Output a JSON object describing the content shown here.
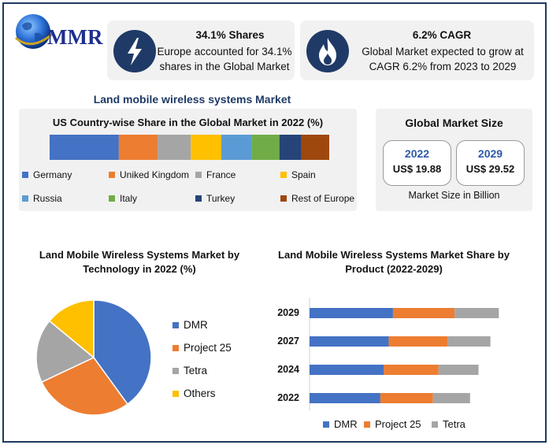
{
  "logo": {
    "text": "MMR"
  },
  "stats": [
    {
      "icon": "lightning-icon",
      "title": "34.1% Shares",
      "description": "Europe accounted for 34.1% shares in the Global Market"
    },
    {
      "icon": "flame-icon",
      "title": "6.2% CAGR",
      "description": "Global Market expected to grow at CAGR 6.2% from 2023 to 2029"
    }
  ],
  "section_title": "Land mobile wireless systems Market",
  "global_size": {
    "title": "Global Market Size",
    "years": [
      {
        "year": "2022",
        "value": "US$ 19.88"
      },
      {
        "year": "2029",
        "value": "US$ 29.52"
      }
    ],
    "footer": "Market Size in Billion"
  },
  "colors": {
    "navy": "#1f3a66",
    "blue": "#4472c4",
    "orange": "#ed7d31",
    "gray": "#a5a5a5",
    "yellow": "#ffc000",
    "light_blue": "#5b9bd5",
    "green": "#70ad47",
    "dark_navy": "#264478",
    "brown": "#9e480e"
  },
  "chart_data": [
    {
      "type": "bar",
      "orientation": "horizontal-stacked-100",
      "title": "US Country-wise Share in the Global Market in 2022 (%)",
      "categories": [
        "Germany",
        "Uniked Kingdom",
        "France",
        "Spain",
        "Russia",
        "Italy",
        "Turkey",
        "Rest of Europe"
      ],
      "values": [
        25,
        14,
        12,
        11,
        11,
        10,
        8,
        10
      ],
      "colors": [
        "#4472c4",
        "#ed7d31",
        "#a5a5a5",
        "#ffc000",
        "#5b9bd5",
        "#70ad47",
        "#264478",
        "#9e480e"
      ],
      "legend": "bottom"
    },
    {
      "type": "pie",
      "title": "Land Mobile Wireless Systems Market by Technology in 2022 (%)",
      "categories": [
        "DMR",
        "Project 25",
        "Tetra",
        "Others"
      ],
      "values": [
        40,
        28,
        18,
        14
      ],
      "colors": [
        "#4472c4",
        "#ed7d31",
        "#a5a5a5",
        "#ffc000"
      ],
      "legend": "right"
    },
    {
      "type": "bar",
      "orientation": "horizontal-stacked",
      "title": "Land Mobile Wireless Systems Market Share by Product (2022-2029)",
      "categories": [
        "2029",
        "2027",
        "2024",
        "2022"
      ],
      "series": [
        {
          "name": "DMR",
          "values": [
            11.9,
            11.3,
            10.6,
            10.1
          ],
          "color": "#4472c4"
        },
        {
          "name": "Project 25",
          "values": [
            8.8,
            8.4,
            7.8,
            7.5
          ],
          "color": "#ed7d31"
        },
        {
          "name": "Tetra",
          "values": [
            6.3,
            6.1,
            5.7,
            5.3
          ],
          "color": "#a5a5a5"
        }
      ],
      "xlim": [
        0,
        30
      ],
      "legend": "bottom"
    }
  ]
}
